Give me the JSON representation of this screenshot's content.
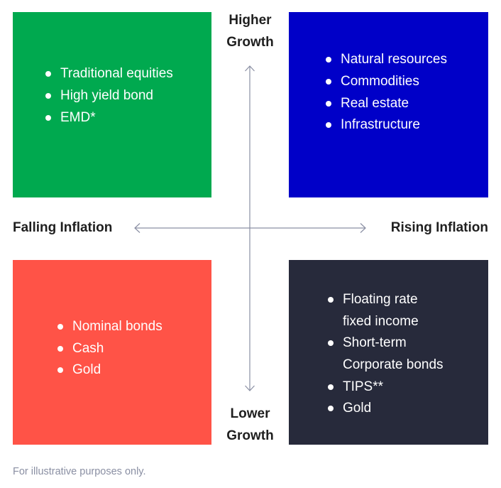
{
  "quadrants": {
    "top_left": {
      "color": "#00a94f",
      "items": [
        "Traditional equities",
        "High yield bond",
        "EMD*"
      ]
    },
    "top_right": {
      "color": "#0000c8",
      "items": [
        "Natural resources",
        "Commodities",
        "Real estate",
        "Infrastructure"
      ]
    },
    "bottom_left": {
      "color": "#ff5347",
      "items": [
        "Nominal bonds",
        "Cash",
        "Gold"
      ]
    },
    "bottom_right": {
      "color": "#272a3b",
      "items": [
        "Floating rate",
        "fixed income",
        "Short-term",
        "Corporate bonds",
        "TIPS**",
        "Gold"
      ],
      "bulleted": [
        true,
        false,
        true,
        false,
        true,
        true
      ]
    }
  },
  "axes": {
    "top_label_line1": "Higher",
    "top_label_line2": "Growth",
    "bottom_label_line1": "Lower",
    "bottom_label_line2": "Growth",
    "left_label": "Falling Inflation",
    "right_label": "Rising Inflation",
    "arrow_color": "#8a8fa3"
  },
  "footnote": "For illustrative purposes only."
}
